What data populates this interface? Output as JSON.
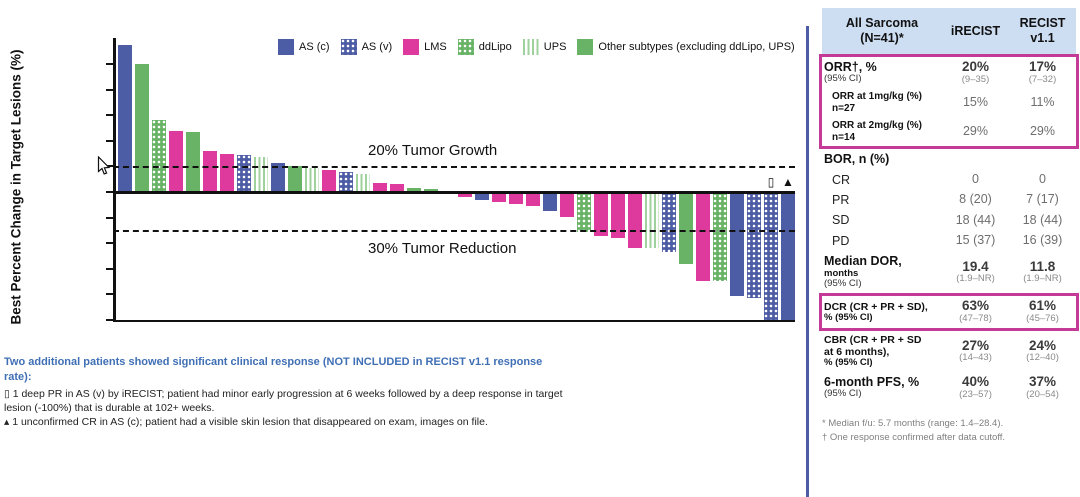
{
  "chart_data": {
    "type": "bar",
    "title": "",
    "xlabel": "",
    "ylabel": "Best Percent Change in Target Lesions (%)",
    "ylim": [
      -100,
      120
    ],
    "yticks": [
      100,
      80,
      60,
      40,
      20,
      0,
      -20,
      -40,
      -60,
      -80,
      -100
    ],
    "grid": false,
    "legend_position": "top",
    "reference_lines": [
      {
        "value": 20,
        "label": "20% Tumor Growth"
      },
      {
        "value": -30,
        "label": "30% Tumor Reduction"
      }
    ],
    "legend": [
      {
        "label": "AS (c)",
        "subtype": "AS (c)",
        "color": "#4d5da5",
        "pattern": "solid"
      },
      {
        "label": "AS (v)",
        "subtype": "AS (v)",
        "color": "#4d5da5",
        "pattern": "white-dots"
      },
      {
        "label": "LMS",
        "subtype": "LMS",
        "color": "#de3a9e",
        "pattern": "solid"
      },
      {
        "label": "ddLipo",
        "subtype": "ddLipo",
        "color": "#68b365",
        "pattern": "white-dots"
      },
      {
        "label": "UPS",
        "subtype": "UPS",
        "color": "#9fd19c",
        "pattern": "vertical-stripes"
      },
      {
        "label": "Other subtypes (excluding ddLipo, UPS)",
        "subtype": "Other",
        "color": "#68b365",
        "pattern": "solid"
      }
    ],
    "bars": [
      {
        "subtype": "AS (c)",
        "value": 115
      },
      {
        "subtype": "Other",
        "value": 100
      },
      {
        "subtype": "ddLipo",
        "value": 56
      },
      {
        "subtype": "LMS",
        "value": 48
      },
      {
        "subtype": "Other",
        "value": 47
      },
      {
        "subtype": "LMS",
        "value": 32
      },
      {
        "subtype": "LMS",
        "value": 30
      },
      {
        "subtype": "AS (v)",
        "value": 29
      },
      {
        "subtype": "UPS",
        "value": 27
      },
      {
        "subtype": "AS (c)",
        "value": 23
      },
      {
        "subtype": "Other",
        "value": 20
      },
      {
        "subtype": "UPS",
        "value": 19
      },
      {
        "subtype": "LMS",
        "value": 17
      },
      {
        "subtype": "AS (v)",
        "value": 16
      },
      {
        "subtype": "UPS",
        "value": 14
      },
      {
        "subtype": "LMS",
        "value": 7
      },
      {
        "subtype": "LMS",
        "value": 6
      },
      {
        "subtype": "Other",
        "value": 3
      },
      {
        "subtype": "Other",
        "value": 2
      },
      {
        "subtype": "LMS",
        "value": 1
      },
      {
        "subtype": "LMS",
        "value": -2
      },
      {
        "subtype": "AS (c)",
        "value": -5
      },
      {
        "subtype": "LMS",
        "value": -6
      },
      {
        "subtype": "LMS",
        "value": -8
      },
      {
        "subtype": "LMS",
        "value": -9
      },
      {
        "subtype": "AS (c)",
        "value": -13
      },
      {
        "subtype": "LMS",
        "value": -18
      },
      {
        "subtype": "ddLipo",
        "value": -30
      },
      {
        "subtype": "LMS",
        "value": -33
      },
      {
        "subtype": "LMS",
        "value": -34
      },
      {
        "subtype": "LMS",
        "value": -42
      },
      {
        "subtype": "UPS",
        "value": -42
      },
      {
        "subtype": "AS (v)",
        "value": -45
      },
      {
        "subtype": "Other",
        "value": -55
      },
      {
        "subtype": "LMS",
        "value": -68
      },
      {
        "subtype": "ddLipo",
        "value": -68
      },
      {
        "subtype": "AS (c)",
        "value": -80
      },
      {
        "subtype": "AS (v)",
        "value": -81
      },
      {
        "subtype": "AS (v)",
        "value": -100,
        "marker": "▯"
      },
      {
        "subtype": "AS (c)",
        "value": -100,
        "marker": "▲"
      }
    ]
  },
  "footnote": {
    "heading": "Two additional patients showed significant clinical response (NOT INCLUDED in RECIST v1.1 response rate):",
    "bullet1": "▯ 1 deep PR in AS (v) by iRECIST; patient had minor early progression at 6 weeks followed by a deep response in target lesion (-100%) that is durable at 102+ weeks.",
    "bullet2": "▴ 1 unconfirmed CR in AS (c); patient had a visible skin lesion that disappeared on exam, images on file."
  },
  "table": {
    "headers": [
      {
        "lines": [
          "All Sarcoma",
          "(N=41)*"
        ]
      },
      {
        "lines": [
          "iRECIST"
        ]
      },
      {
        "lines": [
          "RECIST",
          "v1.1"
        ]
      }
    ],
    "rows": [
      {
        "box": "orr",
        "label": [
          [
            "ORR†, %",
            "lb"
          ],
          [
            "(95% CI)",
            "ls"
          ]
        ],
        "cells": [
          [
            "20%",
            "vb",
            "(9–35)"
          ],
          [
            "17%",
            "vb",
            "(7–32)"
          ]
        ]
      },
      {
        "box": "orr",
        "label": [
          [
            "ORR at 1mg/kg (%)",
            "li"
          ],
          [
            "n=27",
            "li"
          ]
        ],
        "cells": [
          [
            "15%",
            "vg",
            ""
          ],
          [
            "11%",
            "vg",
            ""
          ]
        ]
      },
      {
        "box": "orr",
        "label": [
          [
            "ORR at 2mg/kg (%)",
            "li"
          ],
          [
            "n=14",
            "li"
          ]
        ],
        "cells": [
          [
            "29%",
            "vg",
            ""
          ],
          [
            "29%",
            "vg",
            ""
          ]
        ]
      },
      {
        "label": [
          [
            "BOR, n (%)",
            "lb"
          ]
        ],
        "cells": []
      },
      {
        "label": [
          [
            "CR",
            "ln"
          ]
        ],
        "cells": [
          [
            "0",
            "vg",
            ""
          ],
          [
            "0",
            "vg",
            ""
          ]
        ]
      },
      {
        "label": [
          [
            "PR",
            "ln"
          ]
        ],
        "cells": [
          [
            "8 (20)",
            "vg",
            ""
          ],
          [
            "7 (17)",
            "vg",
            ""
          ]
        ]
      },
      {
        "label": [
          [
            "SD",
            "ln"
          ]
        ],
        "cells": [
          [
            "18 (44)",
            "vg",
            ""
          ],
          [
            "18 (44)",
            "vg",
            ""
          ]
        ]
      },
      {
        "label": [
          [
            "PD",
            "ln"
          ]
        ],
        "cells": [
          [
            "15 (37)",
            "vg",
            ""
          ],
          [
            "16 (39)",
            "vg",
            ""
          ]
        ]
      },
      {
        "label": [
          [
            "Median DOR,",
            "lb"
          ],
          [
            "months",
            "lsb"
          ],
          [
            "(95% CI)",
            "ls"
          ]
        ],
        "cells": [
          [
            "19.4",
            "vb",
            "(1.9–NR)"
          ],
          [
            "11.8",
            "vb",
            "(1.9–NR)"
          ]
        ]
      },
      {
        "box": "dcr",
        "label": [
          [
            "DCR (CR + PR + SD),",
            "lb2"
          ],
          [
            "% (95% CI)",
            "lsb"
          ]
        ],
        "cells": [
          [
            "63%",
            "vb",
            "(47–78)"
          ],
          [
            "61%",
            "vb",
            "(45–76)"
          ]
        ]
      },
      {
        "label": [
          [
            "CBR (CR + PR + SD",
            "lb2"
          ],
          [
            "at 6 months),",
            "lb2"
          ],
          [
            "% (95% CI)",
            "lsb"
          ]
        ],
        "cells": [
          [
            "27%",
            "vb",
            "(14–43)"
          ],
          [
            "24%",
            "vb",
            "(12–40)"
          ]
        ]
      },
      {
        "label": [
          [
            "6-month PFS, %",
            "lb"
          ],
          [
            "(95% CI)",
            "ls"
          ]
        ],
        "cells": [
          [
            "40%",
            "vb",
            "(23–57)"
          ],
          [
            "37%",
            "vb",
            "(20–54)"
          ]
        ]
      }
    ],
    "footnotes": [
      "* Median f/u: 5.7 months (range: 1.4–28.4).",
      "† One response confirmed after data cutoff."
    ]
  }
}
